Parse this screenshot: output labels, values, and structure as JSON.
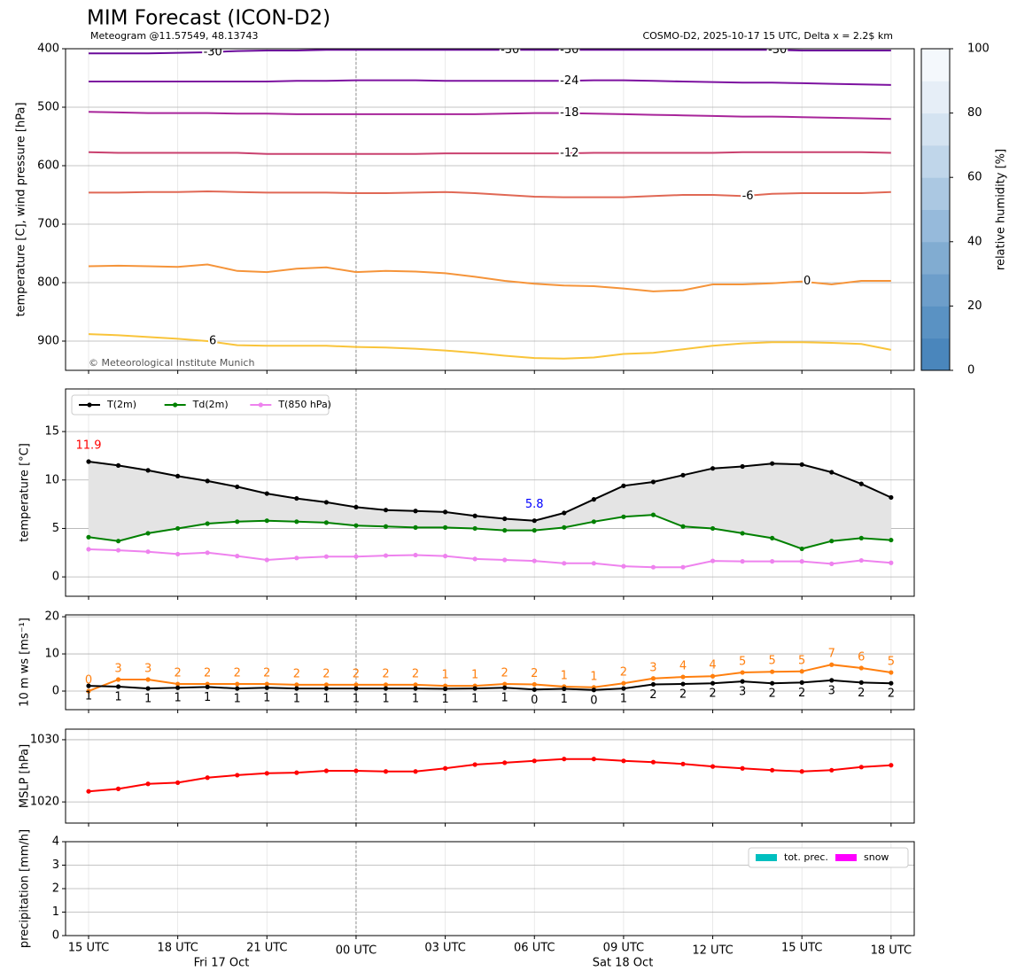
{
  "chart_data": [
    {
      "type": "contour",
      "title": "MIM Forecast (ICON-D2)",
      "subtitle": "Meteogram @11.57549, 48.13743",
      "run_info": "COSMO-D2, 2025-10-17 15 UTC, Delta x = 2.2$ km",
      "credit": "© Meteorological Institute Munich",
      "y_label": "temperature [C], wind pressure [hPa]",
      "ylim": [
        950,
        400
      ],
      "yticks": [
        400,
        500,
        600,
        700,
        800,
        900
      ],
      "grid": true,
      "series": [
        {
          "name": "-30",
          "color": "#6a0a9a",
          "values": [
            408,
            408,
            408,
            407,
            406,
            404,
            403,
            403,
            402,
            402,
            402,
            402,
            402,
            402,
            402,
            402,
            402,
            402,
            402,
            402,
            402,
            402,
            402,
            402,
            403,
            403,
            403,
            403
          ]
        },
        {
          "name": "-24",
          "color": "#7d12a0",
          "values": [
            456,
            456,
            456,
            456,
            456,
            456,
            456,
            455,
            455,
            454,
            454,
            454,
            455,
            455,
            455,
            455,
            455,
            454,
            454,
            455,
            456,
            457,
            458,
            458,
            459,
            460,
            461,
            462
          ]
        },
        {
          "name": "-18",
          "color": "#a8259a",
          "values": [
            508,
            509,
            510,
            510,
            510,
            511,
            511,
            512,
            512,
            512,
            512,
            512,
            512,
            512,
            511,
            510,
            510,
            511,
            512,
            513,
            514,
            515,
            516,
            516,
            517,
            518,
            519,
            520
          ]
        },
        {
          "name": "-12",
          "color": "#c9406e",
          "values": [
            577,
            578,
            578,
            578,
            578,
            578,
            580,
            580,
            580,
            580,
            580,
            580,
            579,
            579,
            579,
            579,
            579,
            578,
            578,
            578,
            578,
            578,
            577,
            577,
            577,
            577,
            577,
            578
          ]
        },
        {
          "name": "-6",
          "color": "#e06855",
          "values": [
            646,
            646,
            645,
            645,
            644,
            645,
            646,
            646,
            646,
            647,
            647,
            646,
            645,
            647,
            650,
            653,
            654,
            654,
            654,
            652,
            650,
            650,
            652,
            648,
            647,
            647,
            647,
            645
          ]
        },
        {
          "name": "0",
          "color": "#f5943a",
          "values": [
            772,
            771,
            772,
            773,
            769,
            780,
            782,
            776,
            774,
            782,
            780,
            781,
            784,
            790,
            797,
            802,
            805,
            806,
            810,
            815,
            813,
            803,
            803,
            801,
            798,
            803,
            797,
            797
          ]
        },
        {
          "name": "6",
          "color": "#f9c43a",
          "values": [
            888,
            890,
            893,
            896,
            900,
            907,
            908,
            908,
            908,
            910,
            911,
            913,
            916,
            920,
            925,
            929,
            930,
            928,
            922,
            920,
            914,
            908,
            904,
            902,
            902,
            903,
            905,
            915
          ]
        }
      ],
      "colorbar": {
        "label": "relative humidity [%]",
        "lim": [
          0,
          100
        ],
        "ticks": [
          0,
          20,
          40,
          60,
          80,
          100
        ],
        "colors": [
          "#4a86bc",
          "#5a92c3",
          "#6d9eca",
          "#81acd1",
          "#96badb",
          "#abc8e2",
          "#c0d6ea",
          "#d4e3f1",
          "#e6eef7",
          "#f4f8fc"
        ]
      }
    },
    {
      "type": "line",
      "y_label": "temperature [°C]",
      "ylim": [
        -2,
        19.4
      ],
      "yticks": [
        0,
        5,
        10,
        15
      ],
      "grid": true,
      "legend": "upper left",
      "fill_between": true,
      "max_label": {
        "text": "11.9",
        "color": "#ff0000"
      },
      "min_label": {
        "text": "5.8",
        "color": "#0000ff"
      },
      "series": [
        {
          "name": "T(2m)",
          "color": "#000000",
          "values": [
            11.9,
            11.5,
            11.0,
            10.4,
            9.9,
            9.3,
            8.6,
            8.1,
            7.7,
            7.2,
            6.9,
            6.8,
            6.7,
            6.3,
            6.0,
            5.8,
            6.6,
            8.0,
            9.4,
            9.8,
            10.5,
            11.2,
            11.4,
            11.7,
            11.6,
            10.8,
            9.6,
            8.2
          ]
        },
        {
          "name": "Td(2m)",
          "color": "#008000",
          "values": [
            4.1,
            3.7,
            4.5,
            5.0,
            5.5,
            5.7,
            5.8,
            5.7,
            5.6,
            5.3,
            5.2,
            5.1,
            5.1,
            5.0,
            4.8,
            4.8,
            5.1,
            5.7,
            6.2,
            6.4,
            5.2,
            5.0,
            4.5,
            4.0,
            2.9,
            3.7,
            4.0,
            3.8
          ]
        },
        {
          "name": "T(850 hPa)",
          "color": "#ee82ee",
          "values": [
            2.85,
            2.75,
            2.6,
            2.35,
            2.5,
            2.15,
            1.75,
            1.95,
            2.1,
            2.1,
            2.2,
            2.25,
            2.15,
            1.85,
            1.75,
            1.65,
            1.4,
            1.4,
            1.1,
            1.0,
            1.0,
            1.65,
            1.6,
            1.6,
            1.6,
            1.35,
            1.7,
            1.45
          ]
        }
      ]
    },
    {
      "type": "line",
      "y_label": "10 m ws [ms⁻¹]",
      "ylim": [
        -5,
        20.5
      ],
      "yticks": [
        0,
        10,
        20
      ],
      "grid": true,
      "series": [
        {
          "color": "#ff7f0e",
          "label_side": "above",
          "values": [
            0,
            3.1,
            3.1,
            1.9,
            1.9,
            1.9,
            1.9,
            1.7,
            1.7,
            1.7,
            1.7,
            1.7,
            1.4,
            1.4,
            1.9,
            1.8,
            1.2,
            1.0,
            2.1,
            3.4,
            3.8,
            4.0,
            5.0,
            5.2,
            5.3,
            7.1,
            6.2,
            5.0
          ],
          "value_labels": [
            "0",
            "3",
            "3",
            "2",
            "2",
            "2",
            "2",
            "2",
            "2",
            "2",
            "2",
            "2",
            "1",
            "1",
            "2",
            "2",
            "1",
            "1",
            "2",
            "3",
            "4",
            "4",
            "5",
            "5",
            "5",
            "7",
            "6",
            "5"
          ]
        },
        {
          "color": "#000000",
          "label_side": "below",
          "values": [
            1.4,
            1.2,
            0.7,
            0.9,
            1.1,
            0.7,
            0.9,
            0.7,
            0.7,
            0.7,
            0.7,
            0.7,
            0.6,
            0.7,
            0.9,
            0.4,
            0.6,
            0.3,
            0.7,
            1.8,
            1.9,
            2.1,
            2.6,
            2.1,
            2.3,
            2.9,
            2.3,
            2.1
          ],
          "value_labels": [
            "1",
            "1",
            "1",
            "1",
            "1",
            "1",
            "1",
            "1",
            "1",
            "1",
            "1",
            "1",
            "1",
            "1",
            "1",
            "0",
            "1",
            "0",
            "1",
            "2",
            "2",
            "2",
            "3",
            "2",
            "2",
            "3",
            "2",
            "2"
          ]
        }
      ]
    },
    {
      "type": "line",
      "y_label": "MSLP [hPa]",
      "ylim": [
        1016.6,
        1031.7
      ],
      "yticks": [
        1020,
        1030
      ],
      "grid": true,
      "series": [
        {
          "color": "#ff0000",
          "values": [
            1021.7,
            1022.1,
            1022.9,
            1023.1,
            1023.9,
            1024.3,
            1024.6,
            1024.7,
            1025.0,
            1025.0,
            1024.9,
            1024.9,
            1025.4,
            1026.0,
            1026.3,
            1026.6,
            1026.9,
            1026.9,
            1026.6,
            1026.4,
            1026.1,
            1025.7,
            1025.4,
            1025.1,
            1024.9,
            1025.1,
            1025.6,
            1025.9
          ]
        }
      ]
    },
    {
      "type": "bar",
      "y_label": "precipitation [mm/h]",
      "ylim": [
        0,
        4
      ],
      "yticks": [
        0,
        1,
        2,
        3,
        4
      ],
      "grid": true,
      "legend": "upper right",
      "categories": [
        "15 UTC",
        null,
        null,
        "18 UTC",
        null,
        null,
        "21 UTC",
        null,
        null,
        "00 UTC",
        null,
        null,
        "03 UTC",
        null,
        null,
        "06 UTC",
        null,
        null,
        "09 UTC",
        null,
        null,
        "12 UTC",
        null,
        null,
        "15 UTC",
        null,
        null,
        "18 UTC"
      ],
      "date_labels": [
        "Fri 17 Oct",
        "Sat 18 Oct"
      ],
      "series": [
        {
          "name": "tot. prec.",
          "color": "#00bfbf",
          "values": [
            0,
            0,
            0,
            0,
            0,
            0,
            0,
            0,
            0,
            0,
            0,
            0,
            0,
            0,
            0,
            0,
            0,
            0,
            0,
            0,
            0,
            0,
            0,
            0,
            0,
            0,
            0,
            0
          ]
        },
        {
          "name": "snow",
          "color": "#ff00ff",
          "values": [
            0,
            0,
            0,
            0,
            0,
            0,
            0,
            0,
            0,
            0,
            0,
            0,
            0,
            0,
            0,
            0,
            0,
            0,
            0,
            0,
            0,
            0,
            0,
            0,
            0,
            0,
            0,
            0
          ]
        }
      ]
    }
  ]
}
